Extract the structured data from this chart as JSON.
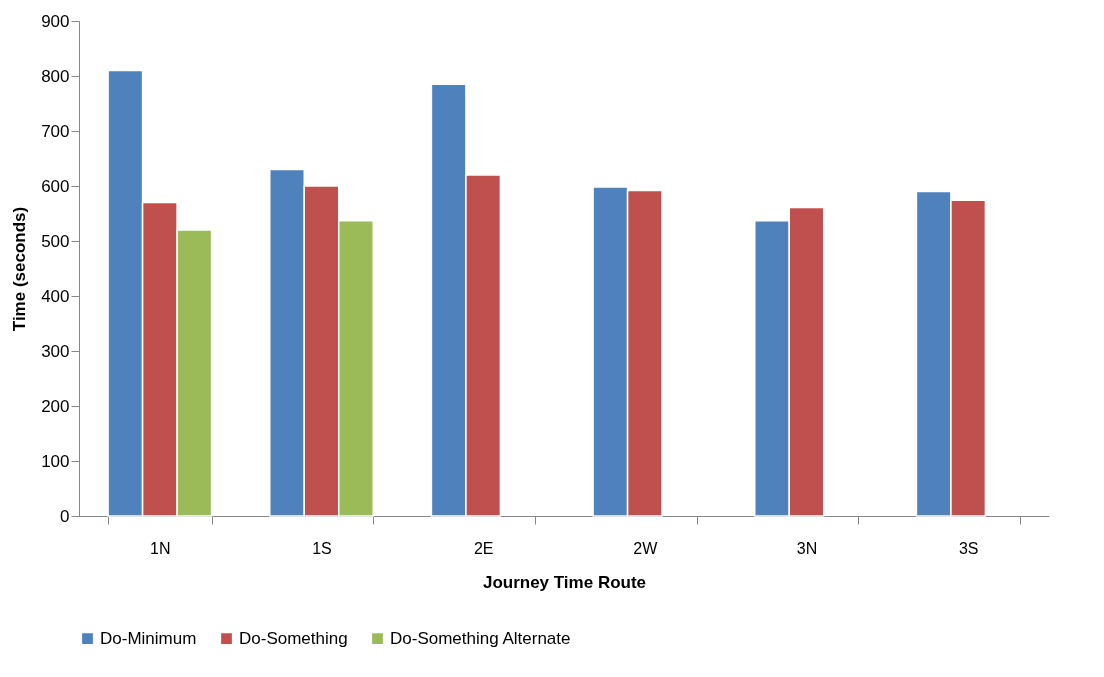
{
  "chart_data": {
    "type": "bar",
    "xlabel": "Journey Time Route",
    "ylabel": "Time (seconds)",
    "categories": [
      "1N",
      "1S",
      "2E",
      "2W",
      "3N",
      "3S"
    ],
    "series": [
      {
        "name": "Do-Minimum",
        "color": "#4f81bd",
        "values": [
          810,
          630,
          785,
          598,
          537,
          590
        ]
      },
      {
        "name": "Do-Something",
        "color": "#c0504d",
        "values": [
          570,
          600,
          620,
          592,
          561,
          574
        ]
      },
      {
        "name": "Do-Something Alternate",
        "color": "#9bbb59",
        "values": [
          520,
          537,
          null,
          null,
          null,
          null
        ]
      }
    ],
    "ylim": [
      0,
      900
    ],
    "yticks": [
      0,
      100,
      200,
      300,
      400,
      500,
      600,
      700,
      800,
      900
    ],
    "grid": false,
    "legend": "bottom"
  }
}
